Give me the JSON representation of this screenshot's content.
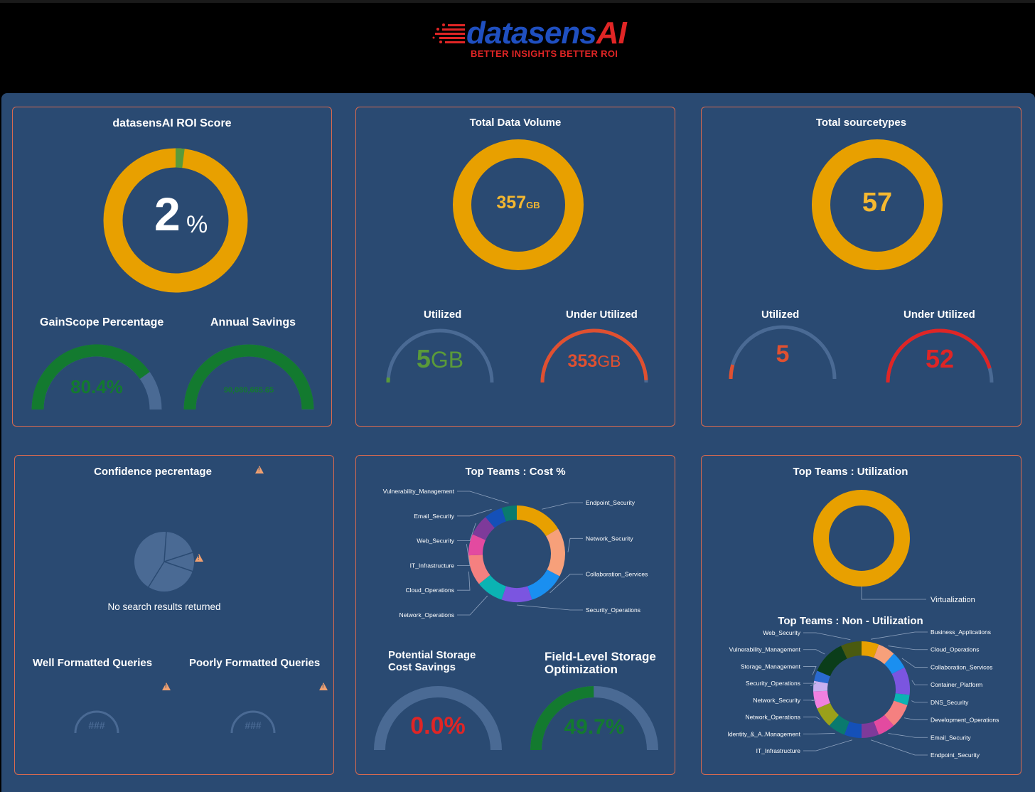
{
  "brand": {
    "name_part1": "datasens",
    "name_part2": "AI",
    "tagline": "BETTER INSIGHTS BETTER ROI",
    "colors": {
      "blue": "#1f4fc0",
      "red": "#e02525"
    }
  },
  "colors": {
    "background": "#2a4a72",
    "panel_border": "#d96a4f",
    "gold": "#e8a000",
    "green": "#137a2f",
    "orange_red": "#e05030",
    "gauge_track": "#4a6a94"
  },
  "roi": {
    "title": "datasensAI ROI Score",
    "value": "2",
    "unit": "%",
    "fraction": 0.02,
    "gainscope": {
      "label": "GainScope Percentage",
      "value": "80.4%",
      "fraction": 0.804
    },
    "savings": {
      "label": "Annual Savings",
      "value": "90,080,665.65",
      "fraction": 1.0
    }
  },
  "volume": {
    "title": "Total Data Volume",
    "value": "357",
    "unit": "GB",
    "utilized": {
      "label": "Utilized",
      "value": "5",
      "unit": "GB",
      "fraction": 0.014
    },
    "under": {
      "label": "Under Utilized",
      "value": "353",
      "unit": "GB",
      "fraction": 0.986
    }
  },
  "sourcetypes": {
    "title": "Total sourcetypes",
    "value": "57",
    "utilized": {
      "label": "Utilized",
      "value": "5",
      "fraction": 0.088
    },
    "under": {
      "label": "Under Utilized",
      "value": "52",
      "fraction": 0.912
    }
  },
  "confidence": {
    "title": "Confidence pecrentage",
    "empty_text": "No search results returned",
    "well": {
      "label": "Well Formatted Queries",
      "value": "###"
    },
    "poor": {
      "label": "Poorly Formatted Queries",
      "value": "###"
    }
  },
  "cost": {
    "title": "Top Teams : Cost %",
    "slices": [
      {
        "name": "Endpoint_Security",
        "value": 16,
        "color": "#e8a000"
      },
      {
        "name": "Network_Security",
        "value": 16,
        "color": "#f7a07a"
      },
      {
        "name": "Collaboration_Services",
        "value": 12,
        "color": "#1a8ff0"
      },
      {
        "name": "Security_Operations",
        "value": 10,
        "color": "#7b55e0"
      },
      {
        "name": "Network_Operations",
        "value": 9,
        "color": "#0bb3b3"
      },
      {
        "name": "Cloud_Operations",
        "value": 10,
        "color": "#f58080"
      },
      {
        "name": "IT_Infrastructure",
        "value": 7,
        "color": "#e34aa0"
      },
      {
        "name": "Web_Security",
        "value": 7,
        "color": "#7e3a9a"
      },
      {
        "name": "Email_Security",
        "value": 6,
        "color": "#1450b8"
      },
      {
        "name": "Vulnerability_Management",
        "value": 5,
        "color": "#0a7a6e"
      }
    ],
    "storage": {
      "label1": "Potential Storage",
      "label2": "Cost Savings",
      "value": "0.0%",
      "fraction": 0.0
    },
    "field": {
      "label1": "Field-Level Storage",
      "label2": "Optimization",
      "value": "49.7%",
      "fraction": 0.497
    }
  },
  "utilization": {
    "title": "Top Teams : Utilization",
    "slices": [
      {
        "name": "Virtualization",
        "value": 100,
        "color": "#e8a000"
      }
    ]
  },
  "nonutil": {
    "title": "Top Teams : Non - Utilization",
    "slices": [
      {
        "name": "Business_Applications",
        "value": 5,
        "color": "#e8a000"
      },
      {
        "name": "Cloud_Operations",
        "value": 5,
        "color": "#f7a07a"
      },
      {
        "name": "Collaboration_Services",
        "value": 5,
        "color": "#1a8ff0"
      },
      {
        "name": "Container_Platform",
        "value": 8,
        "color": "#7b55e0"
      },
      {
        "name": "DNS_Security",
        "value": 3,
        "color": "#0bb3b3"
      },
      {
        "name": "Development_Operations",
        "value": 7,
        "color": "#f58080"
      },
      {
        "name": "Email_Security",
        "value": 5,
        "color": "#e34aa0"
      },
      {
        "name": "Endpoint_Security",
        "value": 5,
        "color": "#7e3a9a"
      },
      {
        "name": "IT_Infrastructure",
        "value": 5,
        "color": "#1450b8"
      },
      {
        "name": "Identity_&_A..Management",
        "value": 5,
        "color": "#0a7a6e"
      },
      {
        "name": "Network_Operations",
        "value": 6,
        "color": "#9aa01a"
      },
      {
        "name": "Network_Security",
        "value": 5,
        "color": "#f080e0"
      },
      {
        "name": "Security_Operations",
        "value": 3,
        "color": "#c8b0f0"
      },
      {
        "name": "Storage_Management",
        "value": 3,
        "color": "#2a6ad0"
      },
      {
        "name": "Vulnerability_Management",
        "value": 10,
        "color": "#0b3d1a"
      },
      {
        "name": "Web_Security",
        "value": 6,
        "color": "#4a5a10"
      }
    ]
  }
}
